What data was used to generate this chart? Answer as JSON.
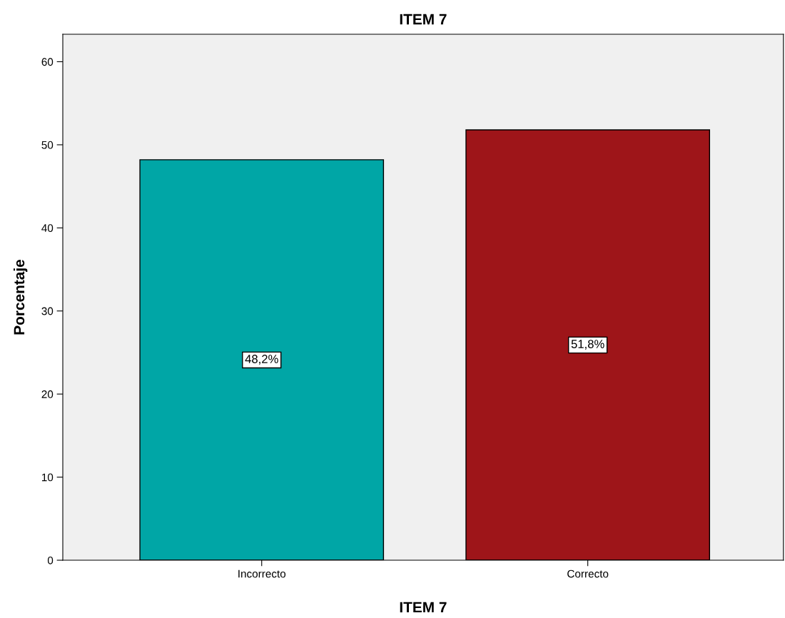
{
  "chart_data": {
    "type": "bar",
    "title": "ITEM 7",
    "xlabel": "ITEM 7",
    "ylabel": "Porcentaje",
    "categories": [
      "Incorrecto",
      "Correcto"
    ],
    "values": [
      48.2,
      51.8
    ],
    "colors": [
      "#00a6a6",
      "#9e1519"
    ],
    "value_labels": [
      "48,2%",
      "51,8%"
    ],
    "ylim": [
      0,
      63.3
    ],
    "yticks": [
      0,
      10,
      20,
      30,
      40,
      50,
      60
    ],
    "grid": false,
    "legend": false
  }
}
